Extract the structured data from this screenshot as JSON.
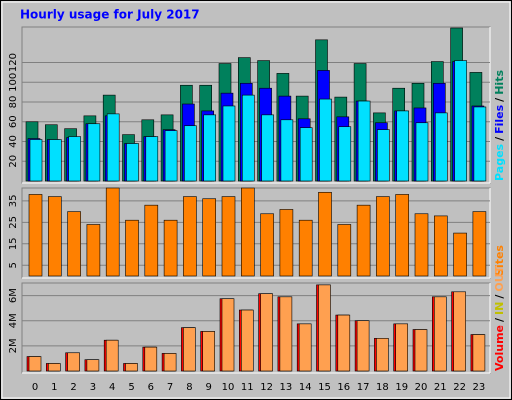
{
  "chart_data": [
    {
      "type": "bar",
      "title": "Hourly usage for July 2017",
      "ylim": [
        0,
        156
      ],
      "yticks": [
        20,
        40,
        60,
        80,
        100,
        120
      ],
      "grid": true,
      "series": [
        {
          "name": "Hits",
          "color": "#00805c",
          "values": [
            60,
            57,
            53,
            66,
            87,
            47,
            62,
            67,
            97,
            97,
            119,
            125,
            122,
            109,
            86,
            143,
            85,
            119,
            69,
            94,
            99,
            121,
            155,
            110
          ]
        },
        {
          "name": "Files",
          "color": "#0000ff",
          "values": [
            43,
            42,
            44,
            58,
            66,
            38,
            45,
            52,
            78,
            71,
            89,
            99,
            94,
            86,
            63,
            112,
            65,
            81,
            59,
            71,
            74,
            99,
            121,
            76
          ]
        },
        {
          "name": "Pages",
          "color": "#00e0ff",
          "values": [
            42,
            42,
            45,
            58,
            68,
            38,
            45,
            51,
            56,
            67,
            76,
            87,
            67,
            62,
            54,
            83,
            55,
            81,
            52,
            71,
            59,
            69,
            122,
            75
          ]
        }
      ],
      "legend_separator": "/"
    },
    {
      "type": "bar",
      "ylim": [
        0,
        41
      ],
      "yticks": [
        5,
        15,
        25,
        35
      ],
      "grid": true,
      "series": [
        {
          "name": "Sites",
          "color": "#ff8000",
          "values": [
            38,
            37,
            30,
            24,
            41,
            26,
            33,
            26,
            37,
            36,
            37,
            41,
            29,
            31,
            26,
            39,
            24,
            33,
            37,
            38,
            29,
            28,
            20,
            30
          ]
        }
      ]
    },
    {
      "type": "bar",
      "categories": [
        "0",
        "1",
        "2",
        "3",
        "4",
        "5",
        "6",
        "7",
        "8",
        "9",
        "10",
        "11",
        "12",
        "13",
        "14",
        "15",
        "16",
        "17",
        "18",
        "19",
        "20",
        "21",
        "22",
        "23"
      ],
      "ylim": [
        0,
        7000000
      ],
      "yticks": [
        {
          "value": 2000000,
          "label": "2M"
        },
        {
          "value": 4000000,
          "label": "4M"
        },
        {
          "value": 6000000,
          "label": "6M"
        }
      ],
      "grid": true,
      "series": [
        {
          "name": "Volume",
          "color": "#ff0000",
          "values": [
            1150000,
            600000,
            1450000,
            900000,
            2450000,
            600000,
            1900000,
            1400000,
            3450000,
            3150000,
            5750000,
            4850000,
            6150000,
            5900000,
            3750000,
            6850000,
            4450000,
            4000000,
            2600000,
            3750000,
            3300000,
            5900000,
            6300000,
            2900000
          ]
        },
        {
          "name": "IN",
          "color": "#c0c000",
          "values": [
            0,
            0,
            0,
            0,
            0,
            0,
            0,
            0,
            0,
            0,
            0,
            0,
            0,
            0,
            0,
            0,
            0,
            0,
            0,
            0,
            0,
            0,
            0,
            0
          ]
        },
        {
          "name": "OUT",
          "color": "#ffa050",
          "values": [
            1150000,
            600000,
            1450000,
            900000,
            2450000,
            600000,
            1900000,
            1400000,
            3450000,
            3150000,
            5750000,
            4850000,
            6150000,
            5900000,
            3750000,
            6850000,
            4450000,
            4000000,
            2600000,
            3750000,
            3300000,
            5900000,
            6300000,
            2900000
          ]
        }
      ]
    }
  ]
}
